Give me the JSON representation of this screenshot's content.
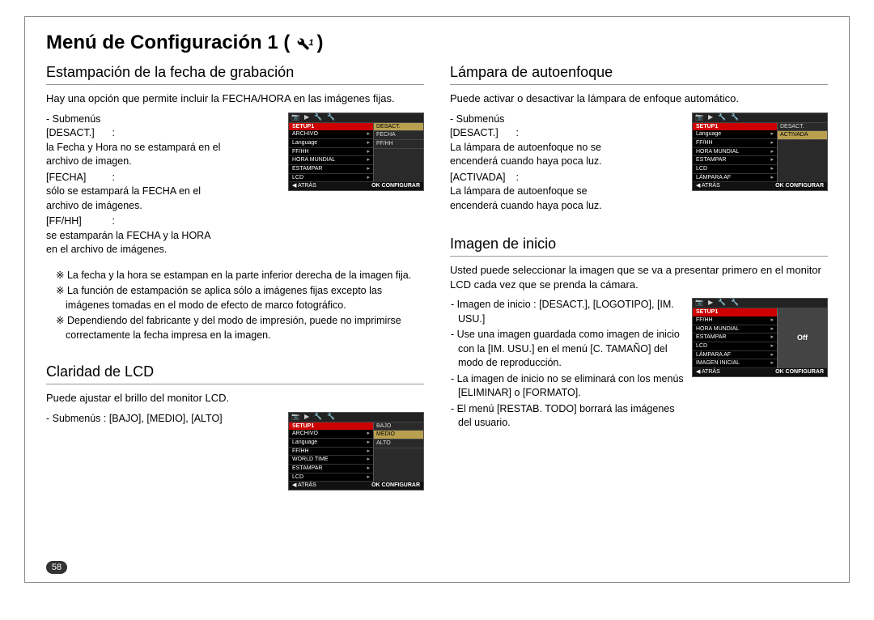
{
  "page": {
    "title": "Menú de Configuración 1 (",
    "title_close": ")",
    "number": "58"
  },
  "icon": {
    "wrench_sub": "1"
  },
  "left": {
    "sec1": {
      "heading": "Estampación de la fecha de grabación",
      "intro": "Hay una opción que permite incluir la FECHA/HORA en las imágenes fijas.",
      "sub_label": "- Submenús",
      "rows": [
        {
          "k": "[DESACT.]",
          "sep": " : ",
          "v": "la Fecha y Hora no se estampará en el archivo de imagen."
        },
        {
          "k": "[FECHA]",
          "sep": " : ",
          "v": "sólo se estampará la FECHA en el archivo de imágenes."
        },
        {
          "k": "[FF/HH]",
          "sep": " : ",
          "v": "se estamparán la FECHA y la HORA en el archivo de imágenes."
        }
      ],
      "notes": [
        "※ La fecha y la hora se estampan en la parte inferior derecha de la imagen fija.",
        "※ La función de estampación se aplica sólo a imágenes fijas excepto las imágenes tomadas en el modo de efecto de marco fotográfico.",
        "※ Dependiendo del fabricante y del modo de impresión, puede no imprimirse correctamente la fecha impresa en la imagen."
      ],
      "lcd": {
        "header": "SETUP1",
        "items": [
          "ARCHIVO",
          "Language",
          "FF/HH",
          "HORA MUNDIAL",
          "ESTAMPAR",
          "LCD"
        ],
        "side": [
          "DESACT.",
          "FECHA",
          "FF/HH"
        ],
        "hl_index": 0,
        "back": "◀  ATRÁS",
        "ok": "OK  CONFIGURAR"
      }
    },
    "sec2": {
      "heading": "Claridad de LCD",
      "intro": "Puede ajustar el brillo del monitor LCD.",
      "sub_line": "- Submenús : [BAJO], [MEDIO], [ALTO]",
      "lcd": {
        "header": "SETUP1",
        "items": [
          "ARCHIVO",
          "Language",
          "FF/HH",
          "WORLD TIME",
          "ESTAMPAR",
          "LCD"
        ],
        "side": [
          "BAJO",
          "MEDIO",
          "ALTO"
        ],
        "hl_index": 1,
        "back": "◀  ATRÁS",
        "ok": "OK  CONFIGURAR"
      }
    }
  },
  "right": {
    "sec1": {
      "heading": "Lámpara de autoenfoque",
      "intro": "Puede activar o desactivar la lámpara de enfoque automático.",
      "sub_label": "- Submenús",
      "rows": [
        {
          "k": "[DESACT.]",
          "sep": " : ",
          "v": "La lámpara de autoenfoque no se encenderá cuando haya poca luz."
        },
        {
          "k": "[ACTIVADA]",
          "sep": " : ",
          "v": "La lámpara de autoenfoque se encenderá cuando haya poca luz."
        }
      ],
      "lcd": {
        "header": "SETUP1",
        "items": [
          "Language",
          "FF/HH",
          "HORA MUNDIAL",
          "ESTAMPAR",
          "LCD",
          "LÁMPARA AF"
        ],
        "side": [
          "DESACT.",
          "ACTIVADA"
        ],
        "hl_index": 1,
        "back": "◀  ATRÁS",
        "ok": "OK  CONFIGURAR"
      }
    },
    "sec2": {
      "heading": "Imagen de inicio",
      "intro": "Usted puede seleccionar la imagen que se va a presentar primero en el monitor LCD cada vez que se prenda la cámara.",
      "bullets": [
        "- Imagen de inicio : [DESACT.], [LOGOTIPO], [IM. USU.]",
        "- Use una imagen guardada como imagen de inicio con la [IM. USU.] en el menú [C. TAMAÑO] del modo de reproducción.",
        "- La imagen de inicio no se eliminará con los menús [ELIMINAR] o [FORMATO].",
        "- El menú [RESTAB. TODO] borrará las imágenes del usuario."
      ],
      "lcd": {
        "header": "SETUP1",
        "items": [
          "FF/HH",
          "HORA MUNDIAL",
          "ESTAMPAR",
          "LCD",
          "LÁMPARA AF",
          "IMAGEN INICIAL"
        ],
        "off_text": "Off",
        "back": "◀  ATRÁS",
        "ok": "OK  CONFIGURAR"
      }
    }
  },
  "lcd_tabs": [
    "📷",
    "▶",
    "🔧",
    "🔧"
  ]
}
